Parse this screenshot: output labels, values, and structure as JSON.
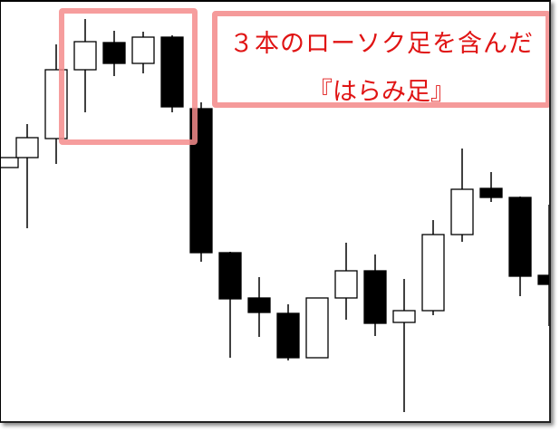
{
  "chart_data": {
    "type": "candlestick",
    "title": "",
    "xlabel": "",
    "ylabel": "",
    "axes_shown": false,
    "grid": false,
    "ylim": [
      20,
      500
    ],
    "colors": {
      "bullish_body": "#ffffff",
      "bearish_body": "#000000",
      "outline": "#000000"
    },
    "candles": [
      {
        "open": 317,
        "high": 328,
        "low": 317,
        "close": 328
      },
      {
        "open": 328,
        "high": 365,
        "low": 250,
        "close": 350
      },
      {
        "open": 349,
        "high": 453,
        "low": 321,
        "close": 425
      },
      {
        "open": 425,
        "high": 481,
        "low": 378,
        "close": 456
      },
      {
        "open": 455,
        "high": 468,
        "low": 418,
        "close": 432
      },
      {
        "open": 432,
        "high": 467,
        "low": 421,
        "close": 461
      },
      {
        "open": 461,
        "high": 463,
        "low": 378,
        "close": 384
      },
      {
        "open": 382,
        "high": 389,
        "low": 213,
        "close": 223
      },
      {
        "open": 223,
        "high": 224,
        "low": 107,
        "close": 172
      },
      {
        "open": 173,
        "high": 196,
        "low": 130,
        "close": 157
      },
      {
        "open": 156,
        "high": 166,
        "low": 104,
        "close": 107
      },
      {
        "open": 107,
        "high": 173,
        "low": 107,
        "close": 173
      },
      {
        "open": 173,
        "high": 234,
        "low": 149,
        "close": 203
      },
      {
        "open": 203,
        "high": 221,
        "low": 131,
        "close": 145
      },
      {
        "open": 146,
        "high": 194,
        "low": 47,
        "close": 159
      },
      {
        "open": 159,
        "high": 259,
        "low": 154,
        "close": 243
      },
      {
        "open": 243,
        "high": 338,
        "low": 235,
        "close": 293
      },
      {
        "open": 294,
        "high": 312,
        "low": 279,
        "close": 284
      },
      {
        "open": 284,
        "high": 285,
        "low": 175,
        "close": 197
      },
      {
        "open": 198,
        "high": 276,
        "low": 142,
        "close": 188
      }
    ],
    "highlight_candles": [
      4,
      5,
      6
    ],
    "annotation": {
      "line1": "３本のローソク足を含んだ",
      "line2": "『はらみ足』",
      "text_color": "#e01414",
      "box_color": "#f59a9a"
    }
  }
}
